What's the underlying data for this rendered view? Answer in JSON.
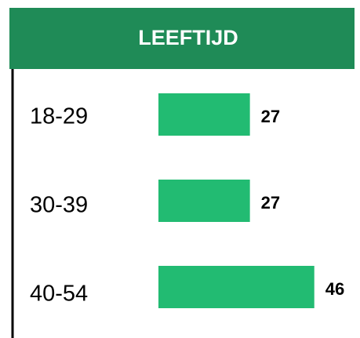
{
  "chart_data": {
    "type": "bar",
    "orientation": "horizontal",
    "title": "LEEFTIJD",
    "categories": [
      "18-29",
      "30-39",
      "40-54"
    ],
    "values": [
      27,
      27,
      46
    ],
    "color": "#22bb72",
    "header_color": "#1f8b57"
  }
}
